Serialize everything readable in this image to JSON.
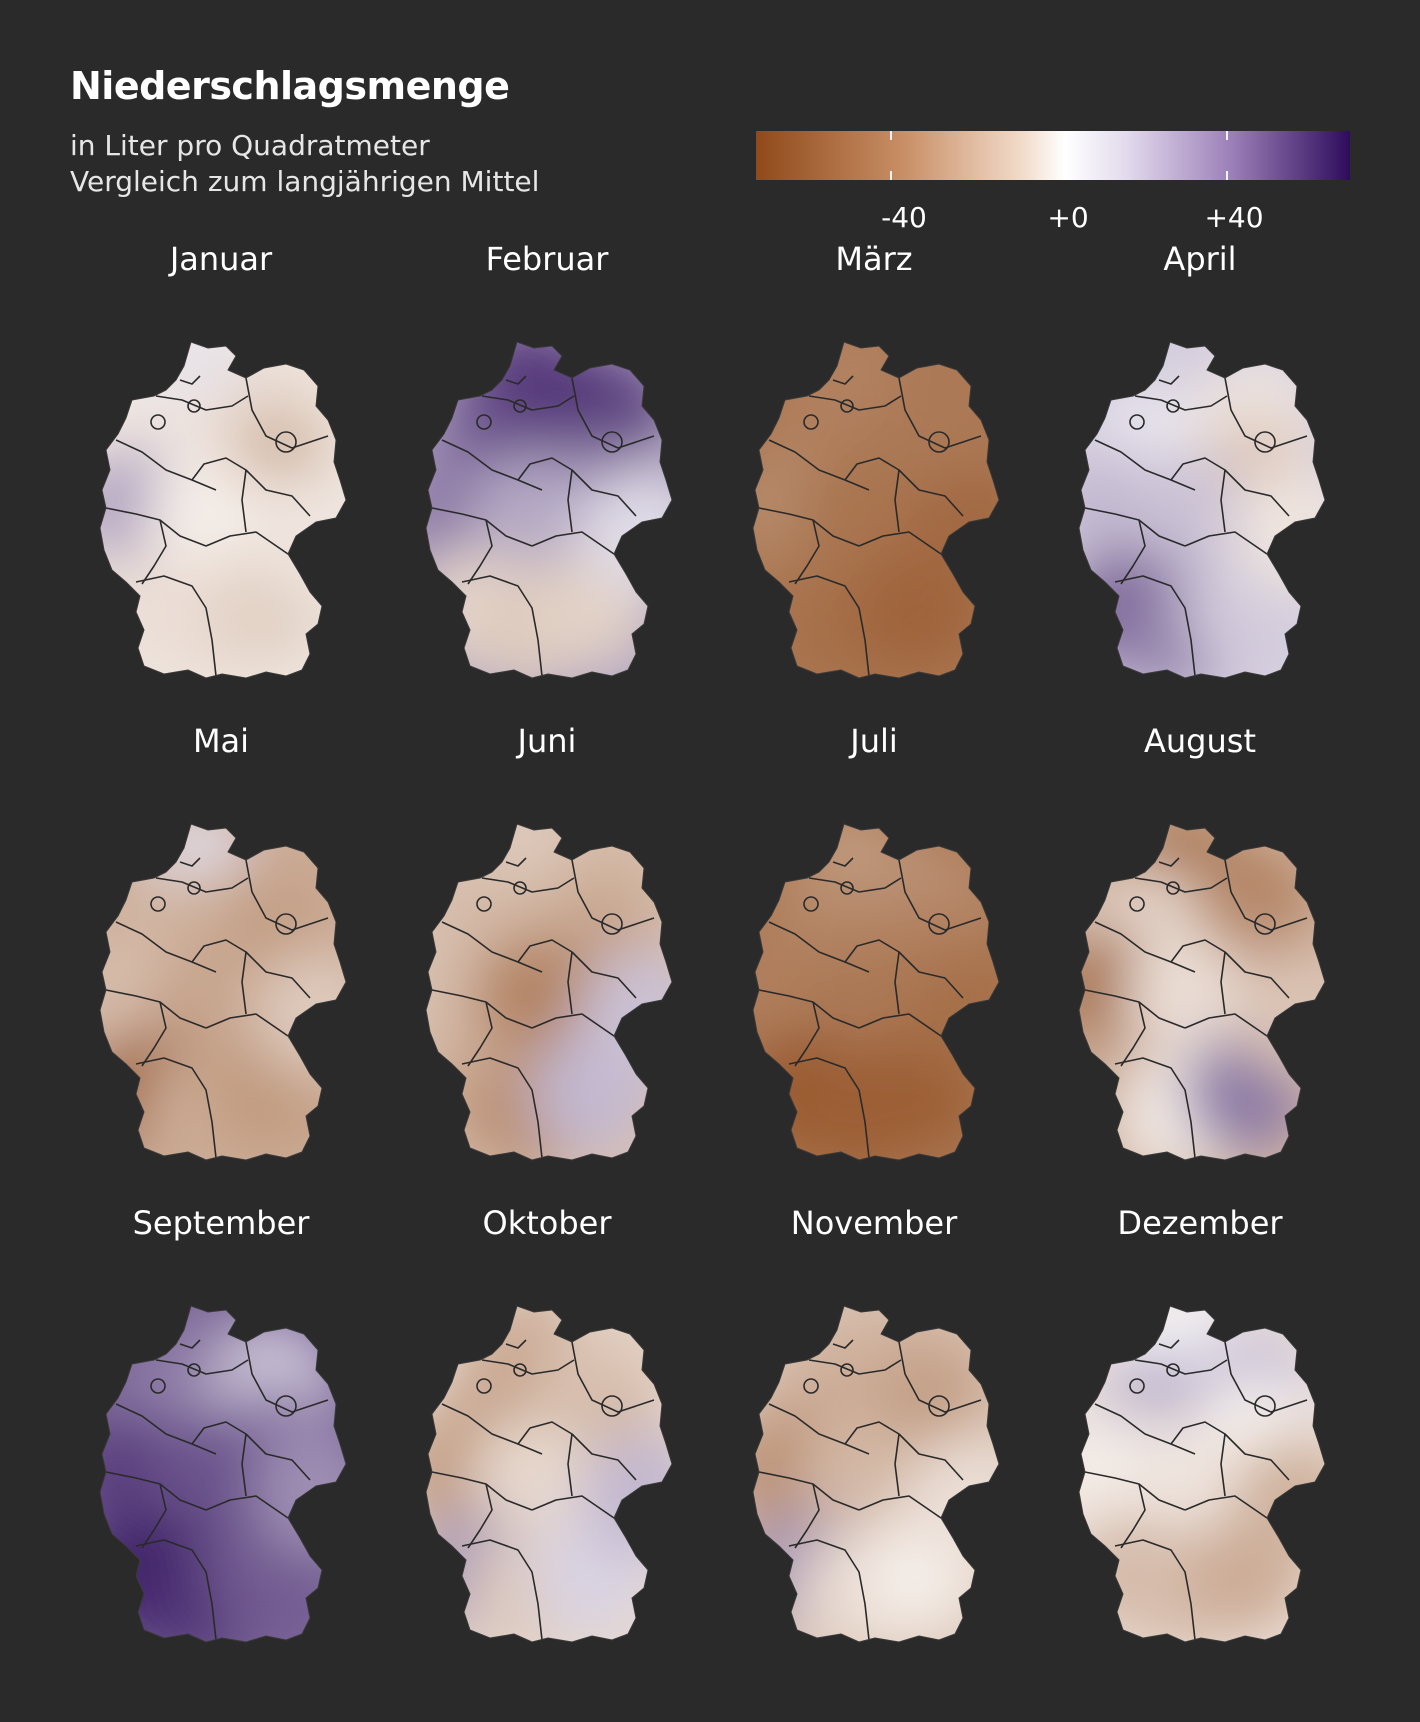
{
  "title": "Niederschlagsmenge",
  "subtitle": {
    "line1": "in Liter pro Quadratmeter",
    "line2": "Vergleich zum langjährigen Mittel"
  },
  "legend": {
    "labels": [
      "-40",
      "+0",
      "+40"
    ],
    "colors": {
      "negative": "#8f4a1a",
      "neutral": "#ffffff",
      "positive": "#2e0c5c"
    }
  },
  "months": [
    {
      "name": "Januar",
      "tone": [
        5,
        -6,
        -10,
        20,
        -22,
        -4,
        -8,
        -8,
        -12,
        -6
      ]
    },
    {
      "name": "Februar",
      "tone": [
        48,
        42,
        50,
        30,
        34,
        18,
        -10,
        -14,
        -12,
        6
      ]
    },
    {
      "name": "März",
      "tone": [
        -38,
        -40,
        -42,
        -36,
        -42,
        -44,
        -44,
        -46,
        -50,
        -48
      ]
    },
    {
      "name": "April",
      "tone": [
        10,
        4,
        -6,
        14,
        -16,
        12,
        36,
        28,
        10,
        -6
      ]
    },
    {
      "name": "Mai",
      "tone": [
        6,
        -22,
        -26,
        -18,
        -30,
        -26,
        -52,
        -24,
        -30,
        -14
      ]
    },
    {
      "name": "Juni",
      "tone": [
        -14,
        -20,
        -22,
        -18,
        -28,
        -38,
        -24,
        -34,
        14,
        12
      ]
    },
    {
      "name": "Juli",
      "tone": [
        -30,
        -36,
        -34,
        -40,
        -40,
        -42,
        -54,
        -52,
        -52,
        -46
      ]
    },
    {
      "name": "August",
      "tone": [
        -44,
        -10,
        -38,
        -46,
        -34,
        -8,
        -26,
        -4,
        30,
        -16
      ]
    },
    {
      "name": "September",
      "tone": [
        32,
        28,
        10,
        46,
        30,
        40,
        56,
        50,
        38,
        24
      ]
    },
    {
      "name": "Oktober",
      "tone": [
        -24,
        -26,
        -16,
        -30,
        -20,
        -10,
        22,
        -14,
        8,
        14
      ]
    },
    {
      "name": "November",
      "tone": [
        -20,
        -24,
        -26,
        -34,
        -30,
        -20,
        24,
        -10,
        -4,
        -8
      ]
    },
    {
      "name": "Dezember",
      "tone": [
        2,
        16,
        12,
        -4,
        -2,
        -6,
        -20,
        -18,
        -24,
        -22
      ]
    }
  ]
}
